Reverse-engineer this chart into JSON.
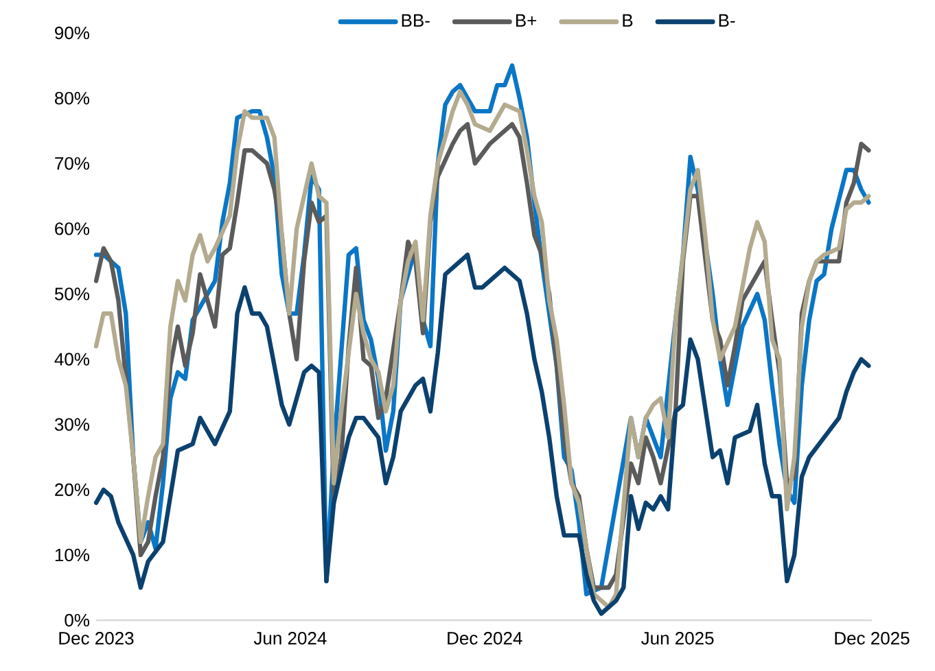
{
  "chart_data": {
    "type": "line",
    "xlim": [
      "2023-12-01",
      "2025-12-01"
    ],
    "xticks": [
      {
        "value": "2023-12-01",
        "label": "Dec 2023"
      },
      {
        "value": "2024-06-01",
        "label": "Jun 2024"
      },
      {
        "value": "2024-12-01",
        "label": "Dec 2024"
      },
      {
        "value": "2025-06-01",
        "label": "Jun 2025"
      },
      {
        "value": "2025-12-01",
        "label": "Dec 2025"
      }
    ],
    "ylim": [
      0,
      90
    ],
    "yticks": [
      {
        "value": 0,
        "label": "0%"
      },
      {
        "value": 10,
        "label": "10%"
      },
      {
        "value": 20,
        "label": "20%"
      },
      {
        "value": 30,
        "label": "30%"
      },
      {
        "value": 40,
        "label": "40%"
      },
      {
        "value": 50,
        "label": "50%"
      },
      {
        "value": 60,
        "label": "60%"
      },
      {
        "value": 70,
        "label": "70%"
      },
      {
        "value": 80,
        "label": "80%"
      },
      {
        "value": 90,
        "label": "90%"
      }
    ],
    "legend": "top",
    "line_style": "solid",
    "series": [
      {
        "name": "BB-",
        "color": "#0a76c6",
        "x": [
          "2023-12-01",
          "2023-12-08",
          "2023-12-22",
          "2023-12-29",
          "2024-01-05",
          "2024-01-12",
          "2024-01-19",
          "2024-01-26",
          "2024-02-02",
          "2024-02-09",
          "2024-02-16",
          "2024-02-23",
          "2024-03-01",
          "2024-03-15",
          "2024-03-22",
          "2024-03-29",
          "2024-04-05",
          "2024-04-12",
          "2024-04-26",
          "2024-05-03",
          "2024-05-10",
          "2024-05-17",
          "2024-05-24",
          "2024-05-31",
          "2024-06-07",
          "2024-06-14",
          "2024-06-21",
          "2024-06-28",
          "2024-07-05",
          "2024-07-12",
          "2024-07-26",
          "2024-08-02",
          "2024-08-09",
          "2024-08-16",
          "2024-08-23",
          "2024-08-30",
          "2024-09-06",
          "2024-09-13",
          "2024-09-27",
          "2024-10-04",
          "2024-10-11",
          "2024-10-18",
          "2024-10-25",
          "2024-11-01",
          "2024-11-08",
          "2024-11-22",
          "2024-12-06",
          "2024-12-13",
          "2024-12-20",
          "2024-12-27",
          "2025-01-03",
          "2025-01-10",
          "2025-01-17",
          "2025-01-24",
          "2025-02-07",
          "2025-02-14",
          "2025-02-21",
          "2025-02-28",
          "2025-03-07",
          "2025-03-21",
          "2025-04-18",
          "2025-04-25",
          "2025-05-02",
          "2025-05-09",
          "2025-05-16",
          "2025-05-30",
          "2025-06-06",
          "2025-06-13",
          "2025-06-20",
          "2025-07-04",
          "2025-07-11",
          "2025-07-18",
          "2025-07-25",
          "2025-08-01",
          "2025-08-15",
          "2025-08-22",
          "2025-08-29",
          "2025-09-05",
          "2025-09-12",
          "2025-09-19",
          "2025-09-26",
          "2025-10-03",
          "2025-10-10",
          "2025-10-17",
          "2025-10-24",
          "2025-11-07",
          "2025-11-14",
          "2025-11-21",
          "2025-11-28"
        ],
        "values": [
          56,
          56,
          54,
          47,
          25,
          12,
          15,
          11,
          21,
          34,
          38,
          37,
          46,
          50,
          52,
          61,
          67,
          77,
          78,
          78,
          74,
          68,
          53,
          47,
          47,
          56,
          68,
          66,
          6,
          26,
          56,
          57,
          46,
          43,
          37,
          26,
          32,
          49,
          57,
          46,
          42,
          70,
          79,
          81,
          82,
          78,
          78,
          82,
          82,
          85,
          80,
          74,
          64,
          55,
          39,
          25,
          23,
          15,
          4,
          5,
          31,
          25,
          31,
          28,
          25,
          46,
          56,
          71,
          66,
          50,
          40,
          33,
          39,
          45,
          50,
          46,
          36,
          27,
          20,
          18,
          36,
          46,
          52,
          53,
          60,
          69,
          69,
          66,
          64
        ]
      },
      {
        "name": "B+",
        "color": "#5b5b5b",
        "x": [
          "2023-12-01",
          "2023-12-08",
          "2023-12-15",
          "2023-12-22",
          "2023-12-29",
          "2024-01-05",
          "2024-01-12",
          "2024-01-19",
          "2024-01-26",
          "2024-02-02",
          "2024-02-09",
          "2024-02-16",
          "2024-02-23",
          "2024-03-01",
          "2024-03-08",
          "2024-03-22",
          "2024-03-29",
          "2024-04-05",
          "2024-04-12",
          "2024-04-19",
          "2024-04-26",
          "2024-05-10",
          "2024-05-17",
          "2024-05-24",
          "2024-05-31",
          "2024-06-07",
          "2024-06-14",
          "2024-06-21",
          "2024-06-28",
          "2024-07-05",
          "2024-07-12",
          "2024-07-19",
          "2024-07-26",
          "2024-08-02",
          "2024-08-09",
          "2024-08-16",
          "2024-08-23",
          "2024-08-30",
          "2024-09-13",
          "2024-09-20",
          "2024-09-27",
          "2024-10-04",
          "2024-10-11",
          "2024-10-18",
          "2024-11-01",
          "2024-11-08",
          "2024-11-15",
          "2024-11-22",
          "2024-12-06",
          "2024-12-13",
          "2024-12-27",
          "2025-01-03",
          "2025-01-10",
          "2025-01-17",
          "2025-01-24",
          "2025-01-31",
          "2025-02-07",
          "2025-02-14",
          "2025-02-21",
          "2025-02-28",
          "2025-03-07",
          "2025-03-14",
          "2025-03-21",
          "2025-03-28",
          "2025-04-04",
          "2025-04-18",
          "2025-04-25",
          "2025-05-02",
          "2025-05-09",
          "2025-05-16",
          "2025-05-30",
          "2025-06-06",
          "2025-06-13",
          "2025-06-20",
          "2025-07-04",
          "2025-07-11",
          "2025-07-18",
          "2025-07-25",
          "2025-08-01",
          "2025-08-15",
          "2025-08-22",
          "2025-08-29",
          "2025-09-05",
          "2025-09-12",
          "2025-09-19",
          "2025-09-26",
          "2025-10-03",
          "2025-10-10",
          "2025-10-17",
          "2025-10-31",
          "2025-11-07",
          "2025-11-14",
          "2025-11-21",
          "2025-11-28"
        ],
        "values": [
          52,
          57,
          55,
          49,
          37,
          25,
          10,
          12,
          19,
          25,
          39,
          45,
          39,
          44,
          53,
          45,
          56,
          57,
          64,
          72,
          72,
          70,
          66,
          59,
          47,
          40,
          55,
          64,
          61,
          62,
          18,
          25,
          42,
          54,
          40,
          39,
          31,
          34,
          49,
          58,
          55,
          44,
          61,
          68,
          73,
          75,
          76,
          70,
          73,
          74,
          76,
          74,
          67,
          59,
          56,
          50,
          39,
          28,
          21,
          19,
          11,
          5,
          5,
          5,
          7,
          24,
          21,
          28,
          25,
          21,
          32,
          55,
          65,
          65,
          46,
          43,
          36,
          42,
          49,
          53,
          55,
          46,
          38,
          21,
          22,
          47,
          52,
          55,
          55,
          55,
          64,
          67,
          73,
          72
        ]
      },
      {
        "name": "B",
        "color": "#b4ab8f",
        "x": [
          "2023-12-01",
          "2023-12-08",
          "2023-12-15",
          "2023-12-22",
          "2023-12-29",
          "2024-01-05",
          "2024-01-12",
          "2024-01-19",
          "2024-01-26",
          "2024-02-02",
          "2024-02-09",
          "2024-02-16",
          "2024-02-23",
          "2024-03-01",
          "2024-03-08",
          "2024-03-15",
          "2024-03-22",
          "2024-04-05",
          "2024-04-12",
          "2024-04-19",
          "2024-04-26",
          "2024-05-10",
          "2024-05-17",
          "2024-05-24",
          "2024-05-31",
          "2024-06-07",
          "2024-06-14",
          "2024-06-21",
          "2024-06-28",
          "2024-07-05",
          "2024-07-12",
          "2024-07-19",
          "2024-08-02",
          "2024-08-09",
          "2024-08-16",
          "2024-08-23",
          "2024-08-30",
          "2024-09-06",
          "2024-09-13",
          "2024-09-20",
          "2024-09-27",
          "2024-10-04",
          "2024-10-11",
          "2024-10-18",
          "2024-10-25",
          "2024-11-01",
          "2024-11-08",
          "2024-11-15",
          "2024-11-22",
          "2024-12-06",
          "2024-12-13",
          "2024-12-20",
          "2025-01-03",
          "2025-01-10",
          "2025-01-17",
          "2025-01-24",
          "2025-01-31",
          "2025-02-07",
          "2025-02-14",
          "2025-02-21",
          "2025-02-28",
          "2025-03-07",
          "2025-03-14",
          "2025-03-21",
          "2025-03-28",
          "2025-04-04",
          "2025-04-18",
          "2025-04-25",
          "2025-05-02",
          "2025-05-09",
          "2025-05-16",
          "2025-05-23",
          "2025-05-30",
          "2025-06-06",
          "2025-06-13",
          "2025-06-20",
          "2025-06-27",
          "2025-07-04",
          "2025-07-11",
          "2025-07-25",
          "2025-08-01",
          "2025-08-08",
          "2025-08-15",
          "2025-08-22",
          "2025-08-29",
          "2025-09-05",
          "2025-09-12",
          "2025-09-19",
          "2025-09-26",
          "2025-10-03",
          "2025-10-10",
          "2025-10-17",
          "2025-10-31",
          "2025-11-07",
          "2025-11-14",
          "2025-11-21",
          "2025-11-28"
        ],
        "values": [
          42,
          47,
          47,
          40,
          36,
          25,
          12,
          19,
          25,
          27,
          45,
          52,
          49,
          56,
          59,
          55,
          57,
          62,
          72,
          78,
          77,
          77,
          74,
          59,
          47,
          60,
          65,
          70,
          65,
          64,
          21,
          32,
          50,
          44,
          40,
          38,
          32,
          36,
          49,
          55,
          58,
          46,
          62,
          70,
          74,
          78,
          81,
          79,
          76,
          75,
          77,
          79,
          78,
          72,
          65,
          61,
          49,
          43,
          33,
          21,
          18,
          11,
          4,
          3,
          2,
          4,
          31,
          25,
          31,
          33,
          34,
          28,
          46,
          56,
          66,
          69,
          59,
          46,
          40,
          45,
          51,
          57,
          61,
          58,
          43,
          40,
          17,
          25,
          45,
          52,
          55,
          56,
          57,
          63,
          64,
          64,
          65
        ]
      },
      {
        "name": "B-",
        "color": "#0b416f",
        "x": [
          "2023-12-01",
          "2023-12-08",
          "2023-12-15",
          "2023-12-22",
          "2024-01-05",
          "2024-01-12",
          "2024-01-19",
          "2024-02-02",
          "2024-02-09",
          "2024-02-16",
          "2024-03-01",
          "2024-03-08",
          "2024-03-22",
          "2024-04-05",
          "2024-04-12",
          "2024-04-19",
          "2024-04-26",
          "2024-05-03",
          "2024-05-10",
          "2024-05-24",
          "2024-05-31",
          "2024-06-14",
          "2024-06-21",
          "2024-06-28",
          "2024-07-05",
          "2024-07-12",
          "2024-07-26",
          "2024-08-02",
          "2024-08-09",
          "2024-08-23",
          "2024-08-30",
          "2024-09-06",
          "2024-09-13",
          "2024-09-27",
          "2024-10-04",
          "2024-10-11",
          "2024-10-18",
          "2024-10-25",
          "2024-11-08",
          "2024-11-15",
          "2024-11-22",
          "2024-11-29",
          "2024-12-13",
          "2024-12-20",
          "2025-01-03",
          "2025-01-10",
          "2025-01-17",
          "2025-01-24",
          "2025-01-31",
          "2025-02-07",
          "2025-02-14",
          "2025-02-28",
          "2025-03-07",
          "2025-03-14",
          "2025-03-21",
          "2025-04-04",
          "2025-04-11",
          "2025-04-18",
          "2025-04-25",
          "2025-05-02",
          "2025-05-09",
          "2025-05-16",
          "2025-05-23",
          "2025-05-30",
          "2025-06-06",
          "2025-06-13",
          "2025-06-20",
          "2025-07-04",
          "2025-07-11",
          "2025-07-18",
          "2025-07-25",
          "2025-08-08",
          "2025-08-15",
          "2025-08-22",
          "2025-08-29",
          "2025-09-05",
          "2025-09-12",
          "2025-09-19",
          "2025-09-26",
          "2025-10-03",
          "2025-10-17",
          "2025-10-31",
          "2025-11-07",
          "2025-11-14",
          "2025-11-21",
          "2025-11-28"
        ],
        "values": [
          18,
          20,
          19,
          15,
          10,
          5,
          9,
          12,
          19,
          26,
          27,
          31,
          27,
          32,
          47,
          51,
          47,
          47,
          45,
          33,
          30,
          38,
          39,
          38,
          6,
          18,
          28,
          31,
          31,
          28,
          21,
          25,
          32,
          36,
          37,
          32,
          41,
          53,
          55,
          56,
          51,
          51,
          53,
          54,
          52,
          47,
          40,
          35,
          28,
          19,
          13,
          13,
          7,
          3,
          1,
          3,
          5,
          19,
          14,
          18,
          17,
          19,
          17,
          32,
          33,
          43,
          40,
          25,
          26,
          21,
          28,
          29,
          33,
          24,
          19,
          19,
          6,
          10,
          22,
          25,
          28,
          31,
          35,
          38,
          40,
          39
        ]
      }
    ]
  }
}
